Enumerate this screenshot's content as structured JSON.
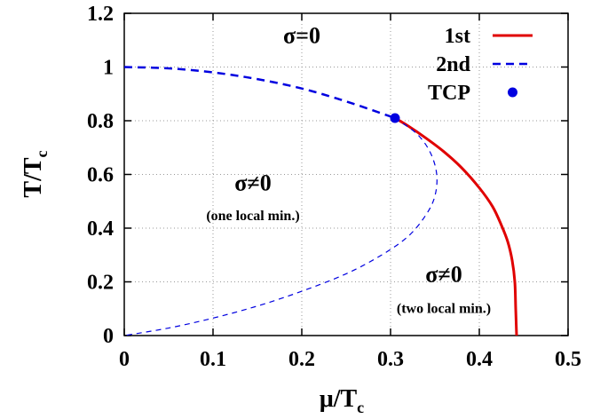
{
  "chart_data": {
    "type": "line",
    "xlabel": {
      "main": "μ/T",
      "sub": "c"
    },
    "ylabel": {
      "main": "T/T",
      "sub": "c"
    },
    "xlim": [
      0,
      0.5
    ],
    "ylim": [
      0,
      1.2
    ],
    "x_ticks": [
      "0",
      "0.1",
      "0.2",
      "0.3",
      "0.4",
      "0.5"
    ],
    "y_ticks": [
      "0",
      "0.2",
      "0.4",
      "0.6",
      "0.8",
      "1",
      "1.2"
    ],
    "grid": true,
    "legend_position": "top-right",
    "series": [
      {
        "name": "1st",
        "style": "solid",
        "color": "#e00000",
        "points": [
          [
            0.305,
            0.81
          ],
          [
            0.32,
            0.78
          ],
          [
            0.34,
            0.735
          ],
          [
            0.36,
            0.685
          ],
          [
            0.38,
            0.625
          ],
          [
            0.4,
            0.55
          ],
          [
            0.415,
            0.48
          ],
          [
            0.425,
            0.41
          ],
          [
            0.432,
            0.35
          ],
          [
            0.437,
            0.28
          ],
          [
            0.44,
            0.2
          ],
          [
            0.441,
            0.1
          ],
          [
            0.442,
            0.0
          ]
        ]
      },
      {
        "name": "2nd",
        "style": "dashed",
        "color": "#0000e0",
        "points": [
          [
            0,
            1.0
          ],
          [
            0.05,
            0.995
          ],
          [
            0.1,
            0.98
          ],
          [
            0.15,
            0.955
          ],
          [
            0.2,
            0.92
          ],
          [
            0.25,
            0.872
          ],
          [
            0.305,
            0.81
          ]
        ]
      },
      {
        "name": "",
        "style": "thin-dashed",
        "color": "#0000e0",
        "points": [
          [
            0.305,
            0.81
          ],
          [
            0.33,
            0.75
          ],
          [
            0.345,
            0.68
          ],
          [
            0.352,
            0.6
          ],
          [
            0.35,
            0.52
          ],
          [
            0.34,
            0.45
          ],
          [
            0.32,
            0.37
          ],
          [
            0.29,
            0.3
          ],
          [
            0.25,
            0.23
          ],
          [
            0.2,
            0.165
          ],
          [
            0.15,
            0.11
          ],
          [
            0.1,
            0.065
          ],
          [
            0.05,
            0.028
          ],
          [
            0.0,
            0.0
          ]
        ]
      },
      {
        "name": "TCP",
        "style": "point",
        "color": "#0000e0",
        "points": [
          [
            0.305,
            0.81
          ]
        ]
      }
    ],
    "annotations": [
      {
        "main": "σ=0",
        "x": 0.2,
        "y": 1.09,
        "size": "big"
      },
      {
        "main": "σ≠0",
        "x": 0.145,
        "y": 0.54,
        "size": "big"
      },
      {
        "main": "(one local min.)",
        "x": 0.145,
        "y": 0.43,
        "size": "small"
      },
      {
        "main": "σ≠0",
        "x": 0.36,
        "y": 0.2,
        "size": "big"
      },
      {
        "main": "(two local min.)",
        "x": 0.36,
        "y": 0.085,
        "size": "small"
      }
    ]
  }
}
